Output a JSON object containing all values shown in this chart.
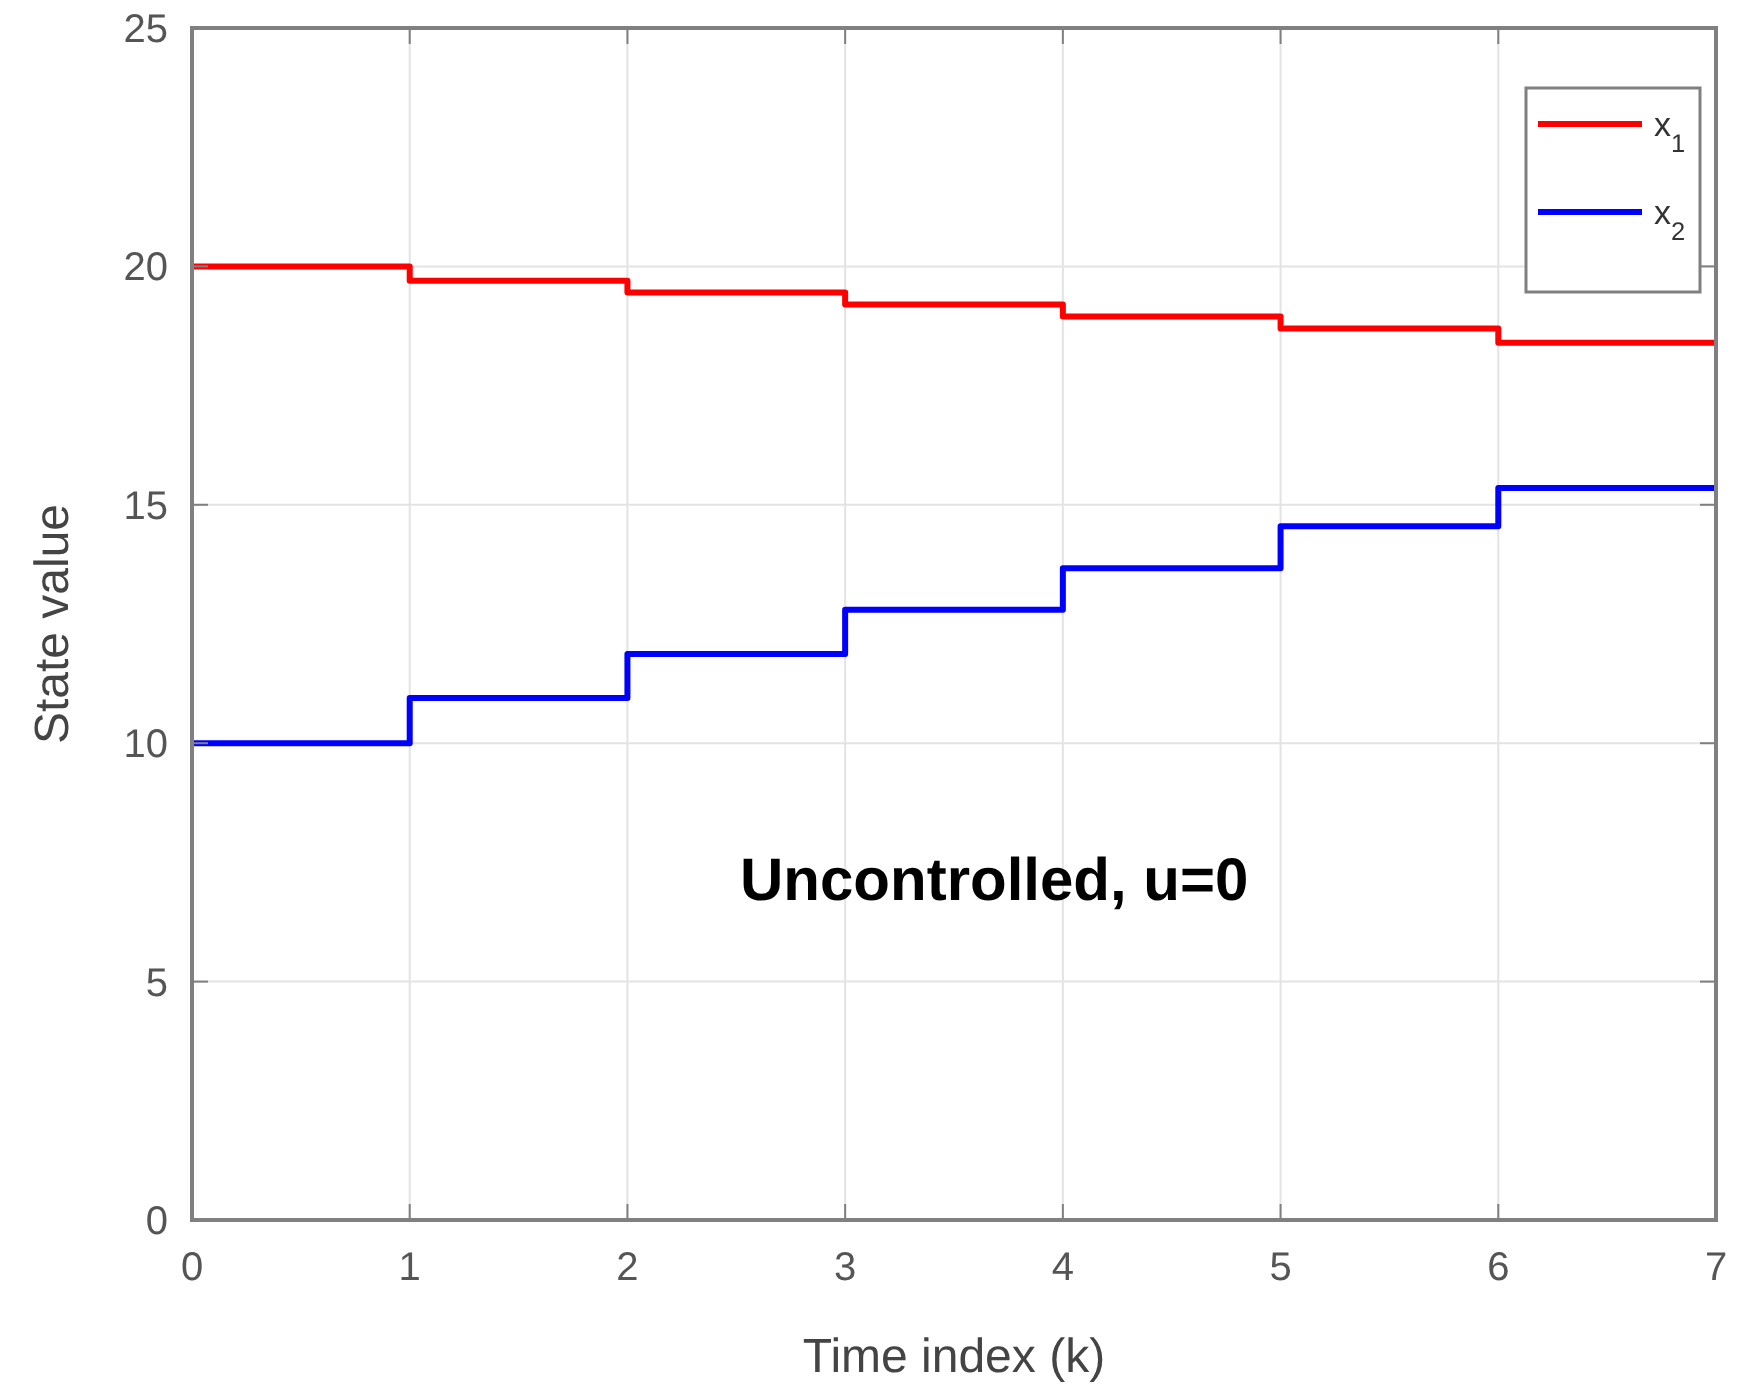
{
  "chart_data": {
    "type": "step",
    "xlabel": "Time index (k)",
    "ylabel": "State value",
    "x": [
      0,
      1,
      2,
      3,
      4,
      5,
      6,
      7
    ],
    "series": [
      {
        "name": "x$_{1}$",
        "color": "#ff0000",
        "values": [
          20,
          19.7,
          19.45,
          19.2,
          18.95,
          18.7,
          18.4,
          18.4
        ]
      },
      {
        "name": "x$_{2}$",
        "color": "#0000ff",
        "values": [
          10,
          10.95,
          11.87,
          12.8,
          13.67,
          14.55,
          15.35,
          15.35
        ]
      }
    ],
    "xlim": [
      0,
      7
    ],
    "xticks": [
      0,
      1,
      2,
      3,
      4,
      5,
      6,
      7
    ],
    "ylim": [
      0,
      25
    ],
    "yticks": [
      0,
      5,
      10,
      15,
      20,
      25
    ],
    "grid": true,
    "legend": "top right",
    "annotations": [
      "Uncontrolled, u=0"
    ]
  }
}
